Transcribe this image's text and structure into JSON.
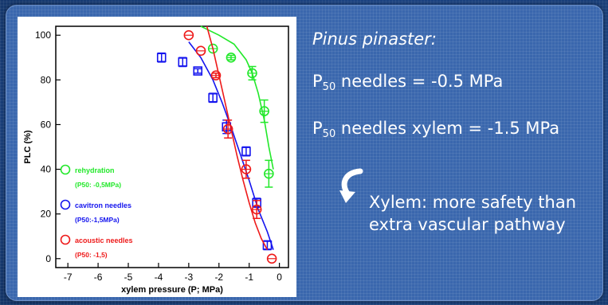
{
  "slide": {
    "species_name": "Pinus pinaster",
    "species_suffix": ":",
    "p50_prefix": "P",
    "p50_sub": "50",
    "p50_needles_rest": " needles = -0.5 MPa",
    "p50_xylem_rest": " needles xylem = -1.5 MPa",
    "conclusion": "Xylem: more safety than extra vascular pathway",
    "arrow_icon": "curved-arrow-icon"
  },
  "colors": {
    "rehydration": "#22e82a",
    "cavitron": "#1414ee",
    "acoustic": "#ee1a1a",
    "panel": "#3a67ad"
  },
  "chart_data": {
    "type": "scatter",
    "xlabel": "xylem pressure (P; MPa)",
    "ylabel": "PLC (%)",
    "xlim": [
      -7.4,
      0.3
    ],
    "ylim": [
      -4,
      104
    ],
    "x_ticks": [
      -7,
      -6,
      -5,
      -4,
      -3,
      -2,
      -1,
      0
    ],
    "y_ticks": [
      0,
      20,
      40,
      60,
      80,
      100
    ],
    "grid": false,
    "legend_position": "bottom-left",
    "series": [
      {
        "name": "rehydration",
        "annotation": "(P50: -0,5MPa)",
        "color_key": "rehydration",
        "marker": "circle",
        "points": [
          {
            "x": -2.2,
            "y": 94,
            "err": 0
          },
          {
            "x": -1.6,
            "y": 90,
            "err": 1
          },
          {
            "x": -0.9,
            "y": 83,
            "err": 3
          },
          {
            "x": -0.5,
            "y": 66,
            "err": 5
          },
          {
            "x": -0.35,
            "y": 38,
            "err": 6
          }
        ],
        "curve": [
          [
            -2.6,
            104
          ],
          [
            -2.0,
            100
          ],
          [
            -1.5,
            96
          ],
          [
            -1.1,
            89
          ],
          [
            -0.9,
            83
          ],
          [
            -0.7,
            74
          ],
          [
            -0.5,
            62
          ],
          [
            -0.35,
            50
          ],
          [
            -0.2,
            40
          ]
        ]
      },
      {
        "name": "cavitron needles",
        "annotation": "(P50:-1,5MPa)",
        "color_key": "cavitron",
        "marker": "square",
        "points": [
          {
            "x": -3.9,
            "y": 90,
            "err": 2
          },
          {
            "x": -3.2,
            "y": 88,
            "err": 2
          },
          {
            "x": -2.7,
            "y": 84,
            "err": 1
          },
          {
            "x": -2.2,
            "y": 72,
            "err": 2
          },
          {
            "x": -1.75,
            "y": 59,
            "err": 3
          },
          {
            "x": -1.1,
            "y": 48,
            "err": 2
          },
          {
            "x": -0.75,
            "y": 25,
            "err": 2
          },
          {
            "x": -0.4,
            "y": 6,
            "err": 2
          }
        ],
        "curve": [
          [
            -3.0,
            97
          ],
          [
            -2.6,
            90
          ],
          [
            -2.2,
            80
          ],
          [
            -1.9,
            70
          ],
          [
            -1.6,
            59
          ],
          [
            -1.3,
            47
          ],
          [
            -1.0,
            35
          ],
          [
            -0.7,
            22
          ],
          [
            -0.4,
            12
          ],
          [
            -0.2,
            4
          ]
        ]
      },
      {
        "name": "acoustic needles",
        "annotation": "(P50: -1,5)",
        "color_key": "acoustic",
        "marker": "circle",
        "points": [
          {
            "x": -3.0,
            "y": 100,
            "err": 0
          },
          {
            "x": -2.6,
            "y": 93,
            "err": 0
          },
          {
            "x": -2.1,
            "y": 82,
            "err": 1
          },
          {
            "x": -1.7,
            "y": 58,
            "err": 4
          },
          {
            "x": -1.1,
            "y": 40,
            "err": 4
          },
          {
            "x": -0.75,
            "y": 22,
            "err": 4
          },
          {
            "x": -0.25,
            "y": 0,
            "err": 0
          }
        ],
        "curve": [
          [
            -2.4,
            104
          ],
          [
            -2.2,
            94
          ],
          [
            -2.0,
            82
          ],
          [
            -1.8,
            70
          ],
          [
            -1.6,
            58
          ],
          [
            -1.4,
            46
          ],
          [
            -1.2,
            35
          ],
          [
            -1.0,
            25
          ],
          [
            -0.8,
            16
          ],
          [
            -0.6,
            9
          ],
          [
            -0.4,
            4
          ]
        ]
      }
    ]
  }
}
